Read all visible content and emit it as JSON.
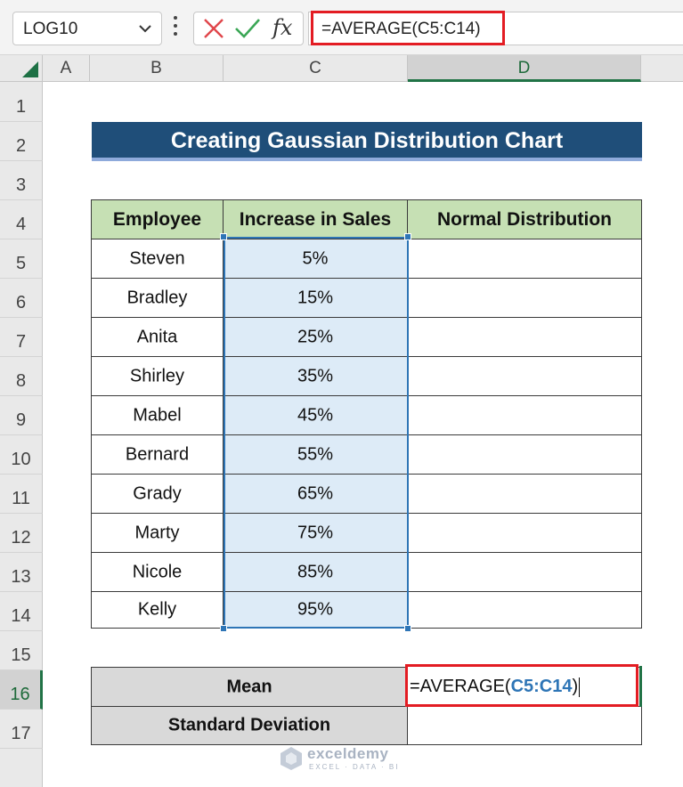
{
  "formula_bar": {
    "name_box": "LOG10",
    "fx_label": "fx",
    "formula": "=AVERAGE(C5:C14)",
    "icons": [
      "chevron-down-icon",
      "more-options-icon",
      "cancel-icon",
      "enter-icon",
      "insert-function-icon"
    ]
  },
  "columns": [
    "A",
    "B",
    "C",
    "D"
  ],
  "rows": [
    "1",
    "2",
    "3",
    "4",
    "5",
    "6",
    "7",
    "8",
    "9",
    "10",
    "11",
    "12",
    "13",
    "14",
    "15",
    "16",
    "17"
  ],
  "title": "Creating Gaussian Distribution Chart",
  "table": {
    "headers": [
      "Employee",
      "Increase in Sales",
      "Normal Distribution"
    ],
    "rows": [
      {
        "employee": "Steven",
        "sales": "5%",
        "normal": ""
      },
      {
        "employee": "Bradley",
        "sales": "15%",
        "normal": ""
      },
      {
        "employee": "Anita",
        "sales": "25%",
        "normal": ""
      },
      {
        "employee": "Shirley",
        "sales": "35%",
        "normal": ""
      },
      {
        "employee": "Mabel",
        "sales": "45%",
        "normal": ""
      },
      {
        "employee": "Bernard",
        "sales": "55%",
        "normal": ""
      },
      {
        "employee": "Grady",
        "sales": "65%",
        "normal": ""
      },
      {
        "employee": "Marty",
        "sales": "75%",
        "normal": ""
      },
      {
        "employee": "Nicole",
        "sales": "85%",
        "normal": ""
      },
      {
        "employee": "Kelly",
        "sales": "95%",
        "normal": ""
      }
    ]
  },
  "summary": {
    "mean_label": "Mean",
    "mean_formula_prefix": "=AVERAGE(",
    "mean_formula_ref": "C5:C14",
    "mean_formula_suffix": ")",
    "std_label": "Standard Deviation",
    "std_value": ""
  },
  "watermark": {
    "name": "exceldemy",
    "tagline": "EXCEL · DATA · BI"
  },
  "colors": {
    "title_bg": "#1f4e79",
    "header_bg": "#c6e0b4",
    "sales_bg": "#ddebf7",
    "summary_bg": "#d9d9d9",
    "highlight": "#e31c23",
    "range_ref": "#2e75b6",
    "excel_green": "#217346"
  }
}
